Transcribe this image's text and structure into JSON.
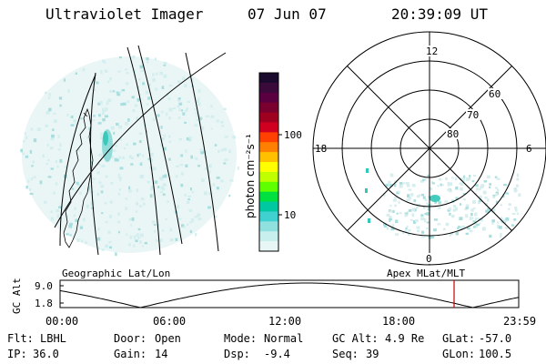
{
  "header": {
    "instrument": "Ultraviolet Imager",
    "date": "07 Jun 07",
    "time": "20:39:09 UT"
  },
  "colorbar": {
    "label": "photon cm⁻²s⁻¹",
    "ticks": [
      "100",
      "10"
    ],
    "colors": [
      "#1a0a2e",
      "#3a0a3a",
      "#5a0040",
      "#7a0030",
      "#a00020",
      "#d00020",
      "#ff4000",
      "#ff8000",
      "#ffc000",
      "#ffff00",
      "#c0ff00",
      "#60ff00",
      "#00e040",
      "#00c8a0",
      "#40d0d0",
      "#90e0e0",
      "#c8eeee",
      "#e8f6f6"
    ]
  },
  "left_map": {
    "caption": "Geographic Lat/Lon"
  },
  "right_map": {
    "caption": "Apex MLat/MLT",
    "mlt_labels": {
      "top": "12",
      "left": "18",
      "right": "6",
      "bottom": "0"
    },
    "lat_labels": [
      "60",
      "70",
      "80"
    ]
  },
  "orbit": {
    "ylabel": "GC Alt",
    "yticks": [
      "9.0",
      "1.8"
    ],
    "xticks": [
      "00:00",
      "06:00",
      "12:00",
      "18:00",
      "23:59"
    ],
    "marker_color": "#cc0000"
  },
  "footer": {
    "row1": [
      {
        "key": "Flt:",
        "val": "LBHL"
      },
      {
        "key": "Door:",
        "val": "Open"
      },
      {
        "key": "Mode:",
        "val": "Normal"
      },
      {
        "key": "GC Alt:",
        "val": "4.9 Re"
      },
      {
        "key": "GLat:",
        "val": "-57.0"
      }
    ],
    "row2": [
      {
        "key": "IP:",
        "val": "36.0"
      },
      {
        "key": "Gain:",
        "val": "14"
      },
      {
        "key": "Dsp:",
        "val": "-9.4"
      },
      {
        "key": "Seq:",
        "val": "39"
      },
      {
        "key": "GLon:",
        "val": "100.5"
      }
    ]
  }
}
